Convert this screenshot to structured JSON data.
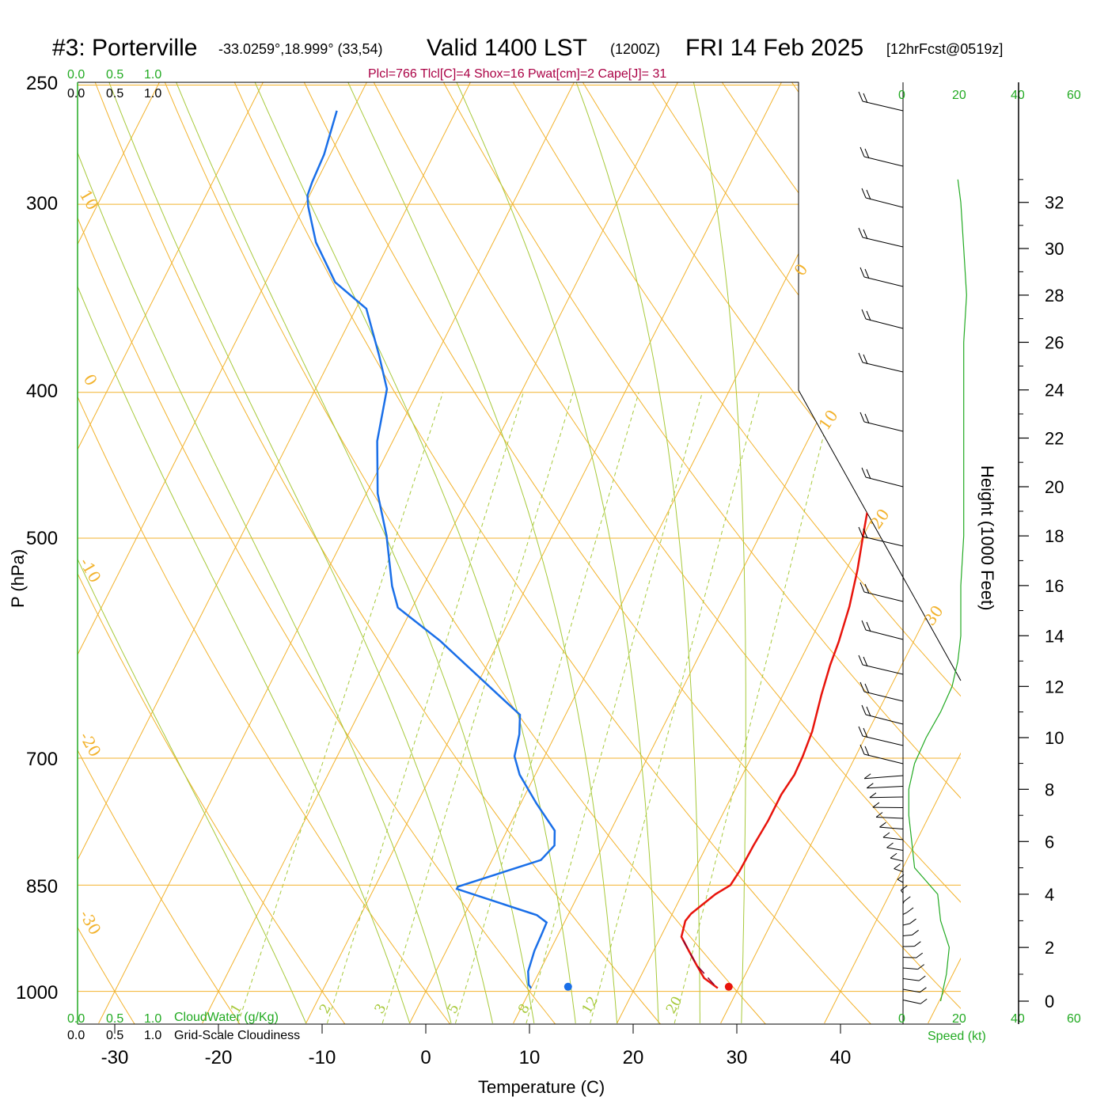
{
  "title": {
    "station": "#3: Porterville",
    "coords": "-33.0259°,18.999° (33,54)",
    "valid": "Valid 1400 LST",
    "utc": "(1200Z)",
    "date": "FRI 14 Feb 2025",
    "forecast": "[12hrFcst@0519z]"
  },
  "indices": "Plcl=766 Tlcl[C]=4 Shox=16 Pwat[cm]=2 Cape[J]= 31",
  "axes": {
    "ylabel": "P (hPa)",
    "xlabel": "Temperature (C)",
    "height_label": "Height (1000 Feet)",
    "speed_label": "Speed (kt)"
  },
  "pressure_ticks": [
    "250",
    "300",
    "400",
    "500",
    "700",
    "850",
    "1000"
  ],
  "temp_ticks": [
    "-30",
    "-20",
    "-10",
    "0",
    "10",
    "20",
    "30",
    "40"
  ],
  "height_ticks": [
    "0",
    "2",
    "4",
    "6",
    "8",
    "10",
    "12",
    "14",
    "16",
    "18",
    "20",
    "22",
    "24",
    "26",
    "28",
    "30",
    "32"
  ],
  "speed_ticks_top": [
    "0",
    "20",
    "40",
    "60"
  ],
  "speed_ticks_bottom": [
    "0",
    "20",
    "40",
    "60"
  ],
  "cloud_scale": {
    "top_green": [
      "0.0",
      "0.5",
      "1.0"
    ],
    "top_black": [
      "0.0",
      "0.5",
      "1.0"
    ],
    "bottom_green": [
      "0.0",
      "0.5",
      "1.0"
    ],
    "bottom_black": [
      "0.0",
      "0.5",
      "1.0"
    ],
    "cloudwater_label": "CloudWater (g/Kg)",
    "cloudiness_label": "Grid-Scale Cloudiness"
  },
  "isotherm_labels": [
    "10",
    "0",
    "-10",
    "-20",
    "-30",
    "0",
    "10",
    "20",
    "30"
  ],
  "mixing_ratio_labels": [
    "1",
    "2",
    "3",
    "5",
    "8",
    "12",
    "20"
  ],
  "colors": {
    "temperature": "#e8140c",
    "dewpoint": "#1a6fe8",
    "isotherm": "#f2b22c",
    "dry_adiabat": "#a7c93a",
    "green_text": "#22aa22",
    "indices": "#aa0044",
    "parcel": "#880033"
  },
  "chart_data": {
    "type": "line",
    "title": "#3: Porterville Valid 1400 LST (1200Z) FRI 14 Feb 2025",
    "xlabel": "Temperature (C)",
    "ylabel": "P (hPa)",
    "xlim": [
      -34,
      36
    ],
    "ylim": [
      1000,
      250
    ],
    "y_scale": "log",
    "skew": "skew-T",
    "series": [
      {
        "kind": "temperature",
        "points": [
          [
            28.0,
            995
          ],
          [
            26.2,
            980
          ],
          [
            24.8,
            960
          ],
          [
            23.4,
            940
          ],
          [
            22.0,
            920
          ],
          [
            21.6,
            898
          ],
          [
            21.8,
            888
          ],
          [
            23.2,
            862
          ],
          [
            24.2,
            850
          ],
          [
            24.4,
            832
          ],
          [
            24.5,
            800
          ],
          [
            24.7,
            770
          ],
          [
            24.7,
            740
          ],
          [
            25.0,
            718
          ],
          [
            24.9,
            698
          ],
          [
            24.6,
            672
          ],
          [
            23.7,
            635
          ],
          [
            23.1,
            607
          ],
          [
            22.8,
            586
          ],
          [
            22.1,
            555
          ],
          [
            21.1,
            525
          ],
          [
            19.8,
            494
          ],
          [
            18.1,
            455
          ],
          [
            16.3,
            424
          ],
          [
            14.5,
            397
          ],
          [
            12.8,
            371
          ],
          [
            11.1,
            347
          ],
          [
            9.4,
            326
          ],
          [
            7.9,
            308
          ],
          [
            6.6,
            292
          ],
          [
            5.6,
            280
          ],
          [
            4.8,
            270
          ],
          [
            4.0,
            260
          ]
        ]
      },
      {
        "kind": "dewpoint",
        "points": [
          [
            10.0,
            995
          ],
          [
            9.6,
            990
          ],
          [
            8.9,
            970
          ],
          [
            8.5,
            940
          ],
          [
            8.4,
            918
          ],
          [
            8.3,
            900
          ],
          [
            7.0,
            890
          ],
          [
            -2.0,
            855
          ],
          [
            -2.0,
            852
          ],
          [
            4.7,
            818
          ],
          [
            5.3,
            800
          ],
          [
            4.6,
            782
          ],
          [
            1.5,
            750
          ],
          [
            -1.5,
            718
          ],
          [
            -2.9,
            698
          ],
          [
            -3.5,
            675
          ],
          [
            -4.4,
            655
          ],
          [
            -7.2,
            637
          ],
          [
            -15.7,
            585
          ],
          [
            -21.4,
            556
          ],
          [
            -23.0,
            538
          ],
          [
            -26.0,
            498
          ],
          [
            -28.9,
            467
          ],
          [
            -31.5,
            431
          ],
          [
            -33.1,
            398
          ],
          [
            -35.5,
            378
          ],
          [
            -39.0,
            352
          ],
          [
            -43.3,
            338
          ],
          [
            -47.1,
            318
          ],
          [
            -49.6,
            301
          ],
          [
            -50.2,
            296
          ],
          [
            -50.4,
            290
          ],
          [
            -50.6,
            278
          ],
          [
            -51.5,
            260
          ]
        ]
      }
    ],
    "surface_dewpoint": 13.5,
    "surface_temperature": 29.0,
    "parcel_dashed": [
      [
        27.5,
        990
      ],
      [
        24.8,
        960
      ],
      [
        22.0,
        920
      ]
    ],
    "wind_speed_profile_kt": [
      [
        0,
        13
      ],
      [
        1,
        15
      ],
      [
        2,
        16
      ],
      [
        3,
        13
      ],
      [
        4,
        12
      ],
      [
        5,
        4
      ],
      [
        6,
        3
      ],
      [
        7,
        2
      ],
      [
        8,
        2
      ],
      [
        9,
        4
      ],
      [
        10,
        8
      ],
      [
        11,
        13
      ],
      [
        12,
        17
      ],
      [
        13,
        19
      ],
      [
        14,
        20
      ],
      [
        16,
        20
      ],
      [
        18,
        21
      ],
      [
        20,
        21
      ],
      [
        22,
        21
      ],
      [
        24,
        21
      ],
      [
        26,
        21
      ],
      [
        28,
        22
      ],
      [
        30,
        21
      ],
      [
        32,
        20
      ],
      [
        33,
        19
      ]
    ]
  }
}
